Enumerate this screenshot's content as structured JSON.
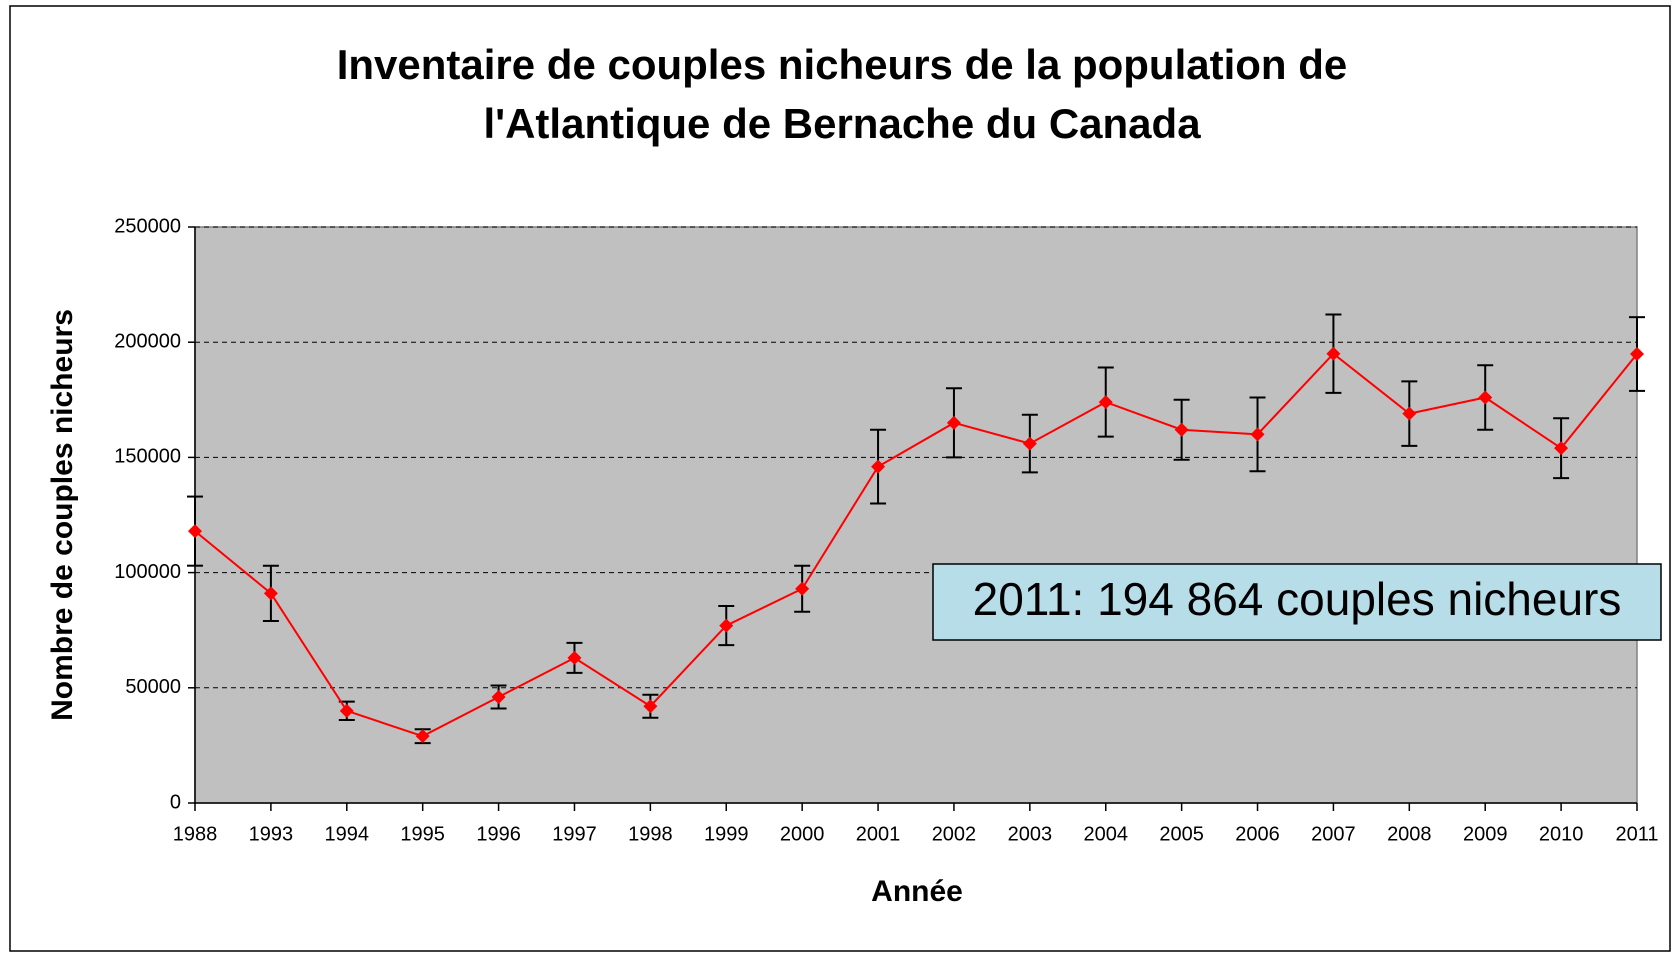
{
  "chart_data": {
    "type": "line",
    "title": [
      "Inventaire de couples nicheurs de la population de",
      "l'Atlantique de Bernache du Canada"
    ],
    "x_label": "Année",
    "y_label": "Nombre de couples nicheurs",
    "annotation": "2011: 194 864 couples nicheurs",
    "categories": [
      "1988",
      "1993",
      "1994",
      "1995",
      "1996",
      "1997",
      "1998",
      "1999",
      "2000",
      "2001",
      "2002",
      "2003",
      "2004",
      "2005",
      "2006",
      "2007",
      "2008",
      "2009",
      "2010",
      "2011"
    ],
    "values": [
      118000,
      91000,
      40000,
      29000,
      46000,
      63000,
      42000,
      77000,
      93000,
      146000,
      165000,
      156000,
      174000,
      162000,
      160000,
      195000,
      169000,
      176000,
      154000,
      194864
    ],
    "errors": [
      15000,
      12000,
      4000,
      3000,
      5000,
      6500,
      5000,
      8500,
      10000,
      16000,
      15000,
      12500,
      15000,
      13000,
      16000,
      17000,
      14000,
      14000,
      13000,
      16000
    ],
    "color": "#ff0000",
    "error_color": "#000000",
    "plot_background": "#c0c0c0",
    "ylim": [
      0,
      250000
    ],
    "yticks": [
      0,
      50000,
      100000,
      150000,
      200000,
      250000
    ],
    "grid": true
  }
}
